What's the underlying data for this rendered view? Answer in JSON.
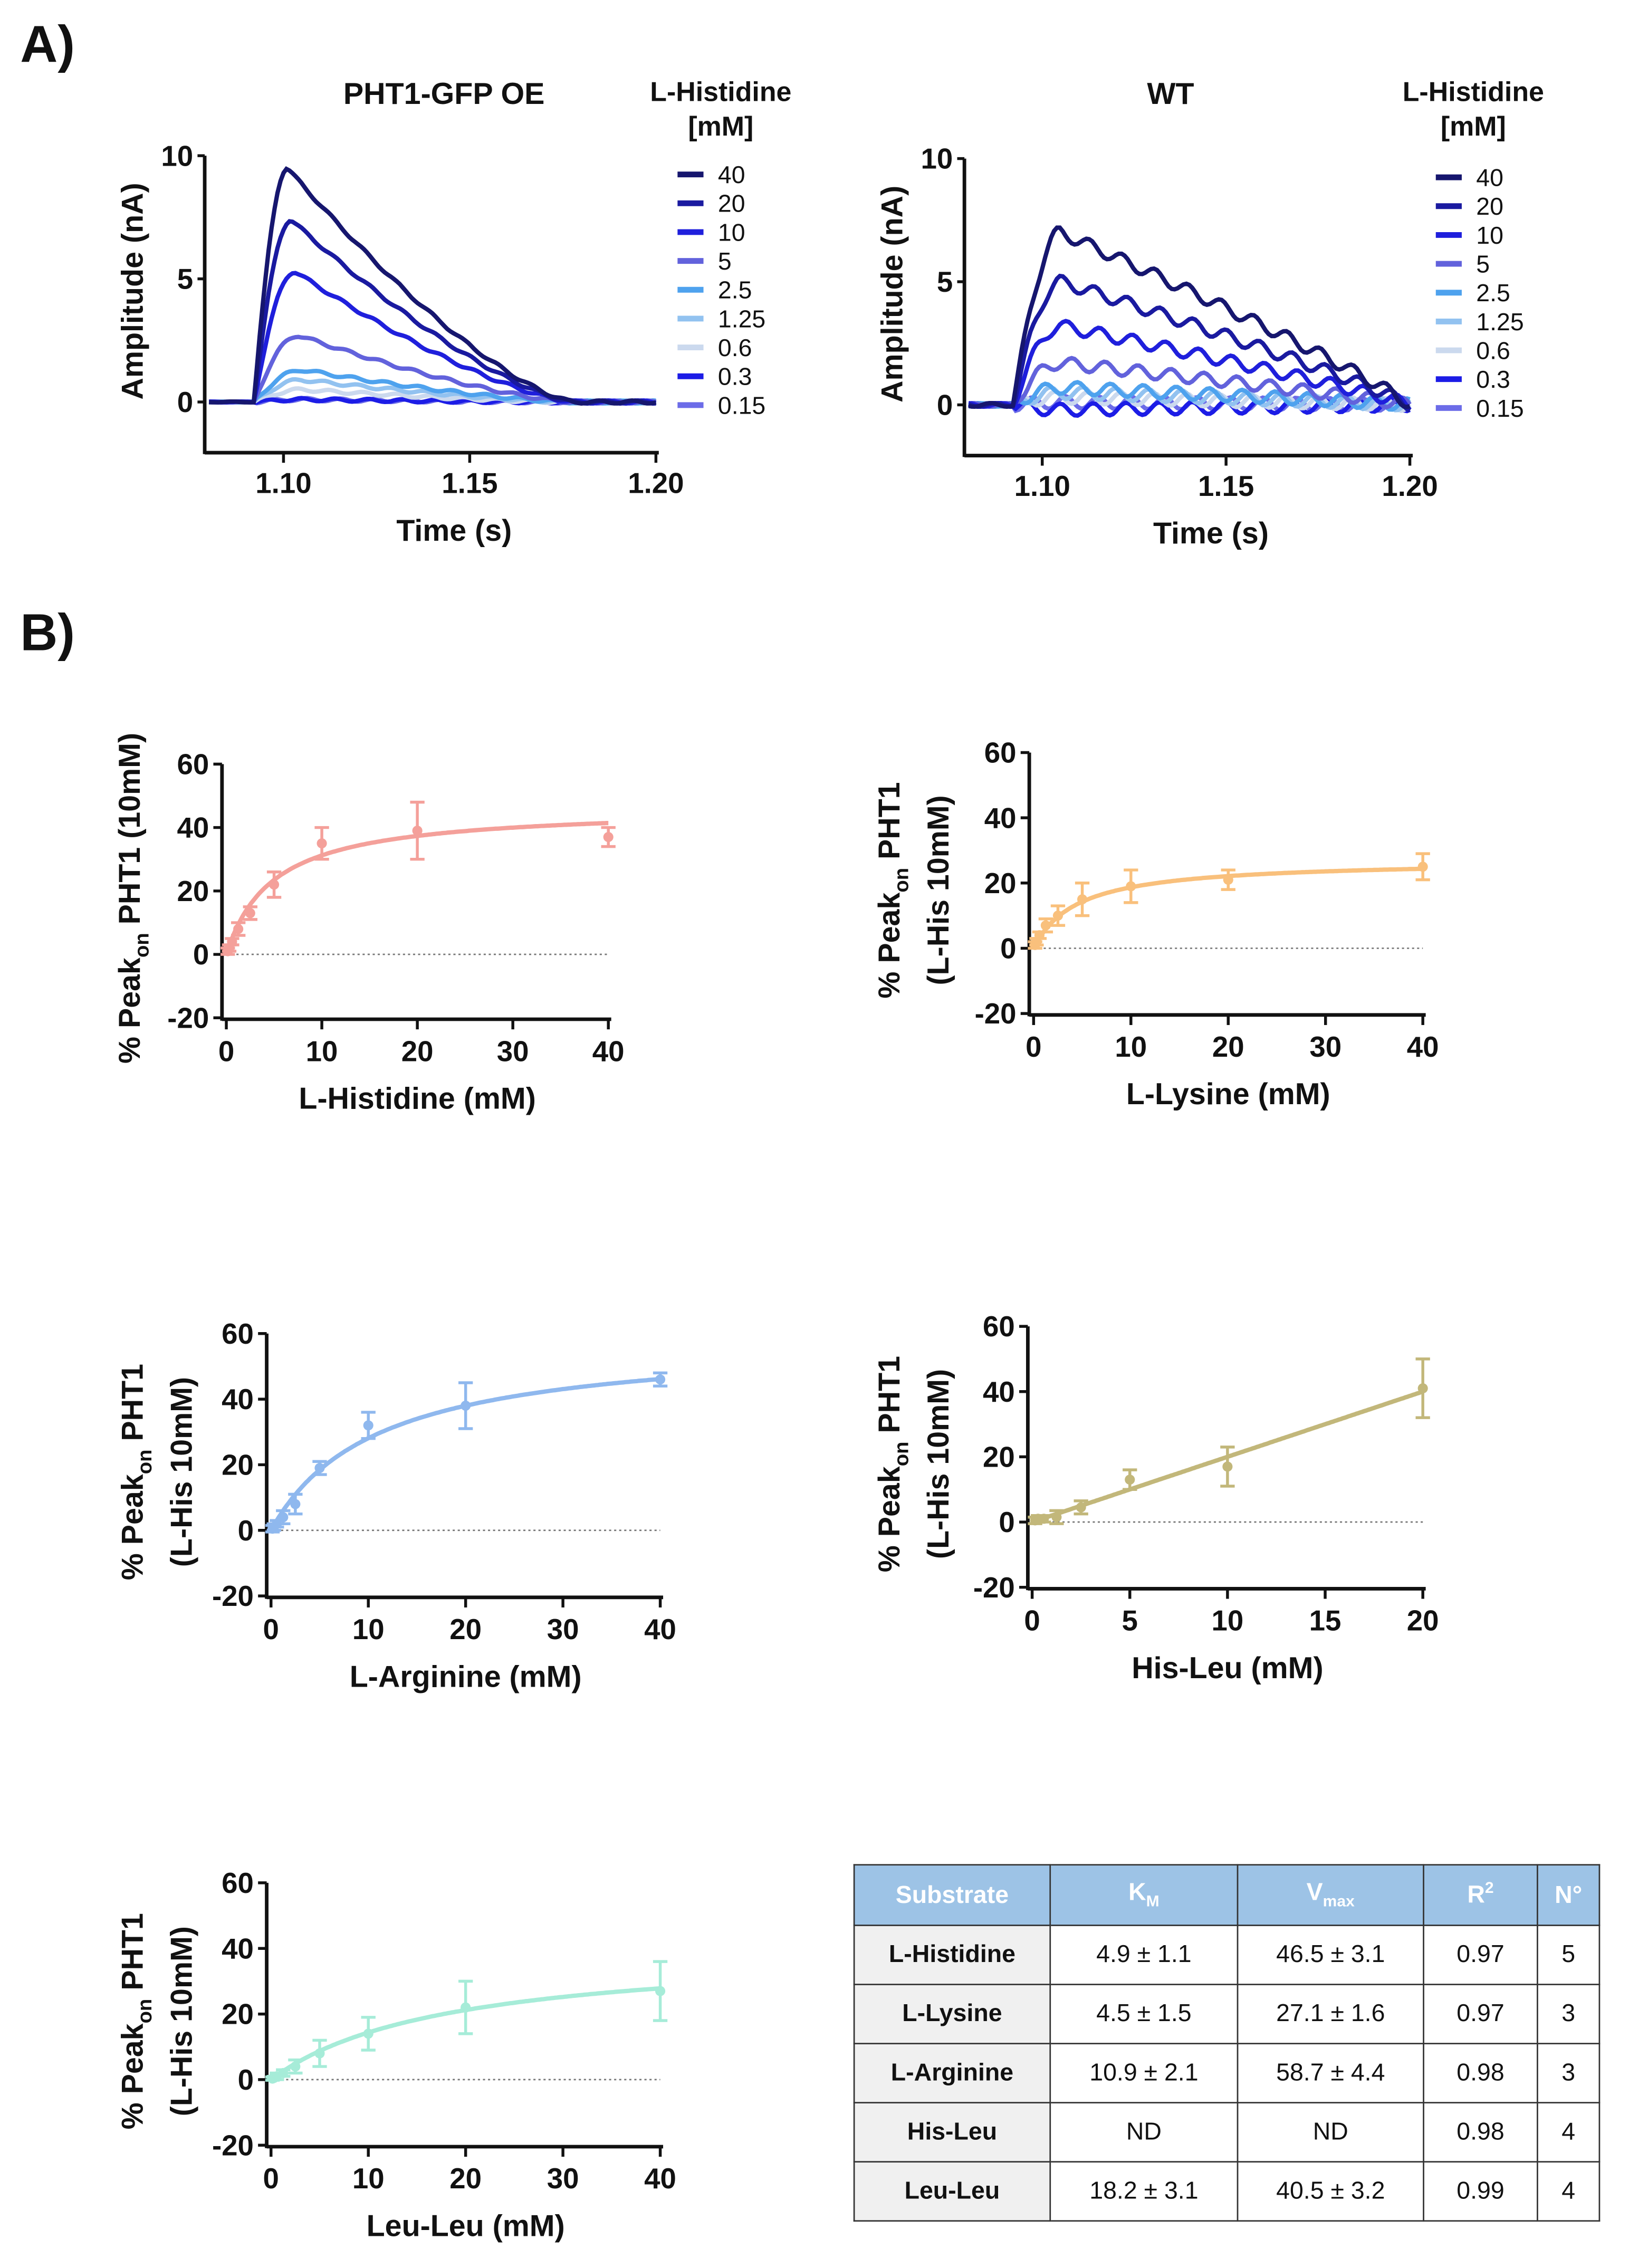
{
  "panel_labels": {
    "a": "A)",
    "b": "B)"
  },
  "chart_data": [
    {
      "type": "line",
      "title": "PHT1-GFP OE",
      "xlabel": "Time (s)",
      "ylabel": "Amplitude (nA)",
      "xlim": [
        1.08,
        1.2
      ],
      "ylim": [
        -2,
        10
      ],
      "xticks": [
        "1.10",
        "1.15",
        "1.20"
      ],
      "yticks": [
        "0",
        "5",
        "10"
      ],
      "legend_title": [
        "L-Histidine",
        "[mM]"
      ],
      "legend_position": "right",
      "series": [
        {
          "name": "40",
          "color": "#16166e",
          "peak": 9.5
        },
        {
          "name": "20",
          "color": "#1a1aa0",
          "peak": 7.4
        },
        {
          "name": "10",
          "color": "#1f1fdc",
          "peak": 5.3
        },
        {
          "name": "5",
          "color": "#6262dc",
          "peak": 2.7
        },
        {
          "name": "2.5",
          "color": "#4ea2ee",
          "peak": 1.3
        },
        {
          "name": "1.25",
          "color": "#92c2f0",
          "peak": 0.9
        },
        {
          "name": "0.6",
          "color": "#cbd9ee",
          "peak": 0.5
        },
        {
          "name": "0.3",
          "color": "#1c1ce6",
          "peak": 0.1
        },
        {
          "name": "0.15",
          "color": "#6c6ce8",
          "peak": 0.1
        }
      ]
    },
    {
      "type": "line",
      "title": "WT",
      "xlabel": "Time (s)",
      "ylabel": "Amplitude (nA)",
      "xlim": [
        1.08,
        1.2
      ],
      "ylim": [
        -2,
        10
      ],
      "xticks": [
        "1.10",
        "1.15",
        "1.20"
      ],
      "yticks": [
        "0",
        "5",
        "10"
      ],
      "legend_title": [
        "L-Histidine",
        "[mM]"
      ],
      "legend_position": "right",
      "series": [
        {
          "name": "40",
          "color": "#16166e",
          "peak": 7.0
        },
        {
          "name": "20",
          "color": "#1a1aa0",
          "peak": 5.0
        },
        {
          "name": "10",
          "color": "#1f1fdc",
          "peak": 3.2
        },
        {
          "name": "5",
          "color": "#6262dc",
          "peak": 1.7
        },
        {
          "name": "2.5",
          "color": "#4ea2ee",
          "peak": 0.7
        },
        {
          "name": "1.25",
          "color": "#92c2f0",
          "peak": 0.5
        },
        {
          "name": "0.6",
          "color": "#cbd9ee",
          "peak": 0.3
        },
        {
          "name": "0.3",
          "color": "#1c1ce6",
          "peak": -0.2
        },
        {
          "name": "0.15",
          "color": "#6c6ce8",
          "peak": 0.1
        }
      ]
    },
    {
      "type": "scatter",
      "xlabel": "L-Histidine (mM)",
      "ylabel": [
        [
          "% Peak",
          "on",
          " PHT1 (10mM)"
        ]
      ],
      "xlim": [
        0,
        40
      ],
      "ylim": [
        -20,
        60
      ],
      "xticks": [
        0,
        10,
        20,
        30,
        40
      ],
      "yticks": [
        -20,
        0,
        20,
        40,
        60
      ],
      "color": "#f4a09a",
      "x": [
        0.15,
        0.3,
        0.6,
        1.25,
        2.5,
        5,
        10,
        20,
        40
      ],
      "y": [
        1,
        2,
        4,
        8,
        13,
        22,
        35,
        39,
        37
      ],
      "err": [
        1,
        1,
        1,
        2,
        2,
        4,
        5,
        9,
        3
      ],
      "fit": {
        "model": "michaelis-menten",
        "Km": 4.9,
        "Vmax": 46.5
      }
    },
    {
      "type": "scatter",
      "xlabel": "L-Lysine (mM)",
      "ylabel": [
        [
          "% Peak",
          "on",
          " PHT1"
        ],
        [
          "(L-His 10mM)"
        ]
      ],
      "xlim": [
        0,
        40
      ],
      "ylim": [
        -20,
        60
      ],
      "xticks": [
        0,
        10,
        20,
        30,
        40
      ],
      "yticks": [
        -20,
        0,
        20,
        40,
        60
      ],
      "color": "#f9c07c",
      "x": [
        0.15,
        0.3,
        0.6,
        1.25,
        2.5,
        5,
        10,
        20,
        40
      ],
      "y": [
        1,
        2,
        4,
        7,
        10,
        15,
        19,
        21,
        25
      ],
      "err": [
        1,
        1,
        1,
        2,
        3,
        5,
        5,
        3,
        4
      ],
      "fit": {
        "model": "michaelis-menten",
        "Km": 4.5,
        "Vmax": 27.1
      }
    },
    {
      "type": "scatter",
      "xlabel": "L-Arginine (mM)",
      "ylabel": [
        [
          "% Peak",
          "on",
          " PHT1"
        ],
        [
          "(L-His 10mM)"
        ]
      ],
      "xlim": [
        0,
        40
      ],
      "ylim": [
        -20,
        60
      ],
      "xticks": [
        0,
        10,
        20,
        30,
        40
      ],
      "yticks": [
        -20,
        0,
        20,
        40,
        60
      ],
      "color": "#8fb8ee",
      "x": [
        0.15,
        0.3,
        0.6,
        1.25,
        2.5,
        5,
        10,
        20,
        40
      ],
      "y": [
        0.5,
        1,
        2,
        4,
        8,
        19,
        32,
        38,
        46
      ],
      "err": [
        1,
        1,
        1,
        2,
        3,
        2,
        4,
        7,
        2
      ],
      "fit": {
        "model": "michaelis-menten",
        "Km": 10.9,
        "Vmax": 58.7
      }
    },
    {
      "type": "scatter",
      "xlabel": "His-Leu (mM)",
      "ylabel": [
        [
          "% Peak",
          "on",
          " PHT1"
        ],
        [
          "(L-His 10mM)"
        ]
      ],
      "xlim": [
        0,
        20
      ],
      "ylim": [
        -20,
        60
      ],
      "xticks": [
        0,
        5,
        10,
        15,
        20
      ],
      "yticks": [
        -20,
        0,
        20,
        40,
        60
      ],
      "color": "#c2b77a",
      "x": [
        0.15,
        0.3,
        0.6,
        1.25,
        2.5,
        5,
        10,
        20
      ],
      "y": [
        0.5,
        1,
        1,
        1.5,
        4.5,
        13,
        17,
        41
      ],
      "err": [
        1,
        1,
        1,
        2,
        2,
        3,
        6,
        9
      ],
      "fit": {
        "model": "linear",
        "slope": 2.0,
        "intercept": 0
      }
    },
    {
      "type": "scatter",
      "xlabel": "Leu-Leu (mM)",
      "ylabel": [
        [
          "% Peak",
          "on",
          " PHT1"
        ],
        [
          "(L-His 10mM)"
        ]
      ],
      "xlim": [
        0,
        40
      ],
      "ylim": [
        -20,
        60
      ],
      "xticks": [
        0,
        10,
        20,
        30,
        40
      ],
      "yticks": [
        -20,
        0,
        20,
        40,
        60
      ],
      "color": "#a6ecd8",
      "x": [
        0.15,
        0.3,
        0.6,
        1.25,
        2.5,
        5,
        10,
        20,
        40
      ],
      "y": [
        0.3,
        0.5,
        1,
        2,
        4,
        8,
        14,
        22,
        27
      ],
      "err": [
        0.5,
        0.5,
        1,
        1,
        2,
        4,
        5,
        8,
        9
      ],
      "fit": {
        "model": "michaelis-menten",
        "Km": 18.2,
        "Vmax": 40.5
      }
    }
  ],
  "table": {
    "headers": {
      "substrate": "Substrate",
      "km": "K",
      "km_sub": "M",
      "vmax": "V",
      "vmax_sub": "max",
      "r2": "R",
      "r2_sup": "2",
      "n": "N°"
    },
    "header_color": "#9dc3e6",
    "rows": [
      {
        "substrate": "L-Histidine",
        "km": "4.9 ± 1.1",
        "vmax": "46.5 ± 3.1",
        "r2": "0.97",
        "n": "5"
      },
      {
        "substrate": "L-Lysine",
        "km": "4.5 ± 1.5",
        "vmax": "27.1 ± 1.6",
        "r2": "0.97",
        "n": "3"
      },
      {
        "substrate": "L-Arginine",
        "km": "10.9 ± 2.1",
        "vmax": "58.7 ± 4.4",
        "r2": "0.98",
        "n": "3"
      },
      {
        "substrate": "His-Leu",
        "km": "ND",
        "vmax": "ND",
        "r2": "0.98",
        "n": "4"
      },
      {
        "substrate": "Leu-Leu",
        "km": "18.2 ± 3.1",
        "vmax": "40.5 ± 3.2",
        "r2": "0.99",
        "n": "4"
      }
    ]
  }
}
